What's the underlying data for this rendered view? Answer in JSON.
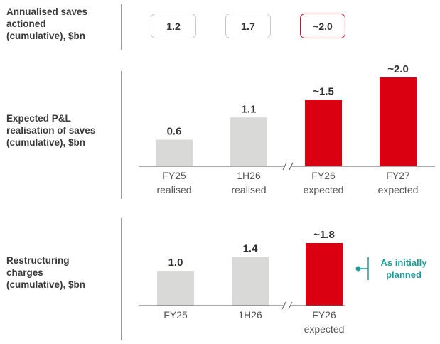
{
  "rows": {
    "saves": "Annualised saves\nactioned\n(cumulative), $bn",
    "pl": "Expected P&L\nrealisation of saves\n(cumulative), $bn",
    "restructuring": "Restructuring\ncharges\n(cumulative), $bn"
  },
  "saves_boxes": [
    {
      "value": "1.2",
      "highlight": false
    },
    {
      "value": "1.7",
      "highlight": false
    },
    {
      "value": "~2.0",
      "highlight": true
    }
  ],
  "colors": {
    "actual": "#d9d9d8",
    "expected": "#db0011",
    "accent": "#1a9e96",
    "axis": "#555555"
  },
  "chart_data": [
    {
      "type": "bar",
      "categories": [
        "FY25\nrealised",
        "1H26\nrealised",
        "FY26\nexpected",
        "FY27\nexpected"
      ],
      "values": [
        0.6,
        1.1,
        1.5,
        2.0
      ],
      "value_labels": [
        "0.6",
        "1.1",
        "~1.5",
        "~2.0"
      ],
      "expected": [
        false,
        false,
        true,
        true
      ],
      "axis_break_after": 1,
      "ylim": [
        0,
        2.0
      ]
    },
    {
      "type": "bar",
      "categories": [
        "FY25",
        "1H26",
        "FY26\nexpected"
      ],
      "values": [
        1.0,
        1.4,
        1.8
      ],
      "value_labels": [
        "1.0",
        "1.4",
        "~1.8"
      ],
      "expected": [
        false,
        false,
        true
      ],
      "axis_break_after": 1,
      "ylim": [
        0,
        1.8
      ],
      "annotation": "As initially\nplanned"
    }
  ]
}
